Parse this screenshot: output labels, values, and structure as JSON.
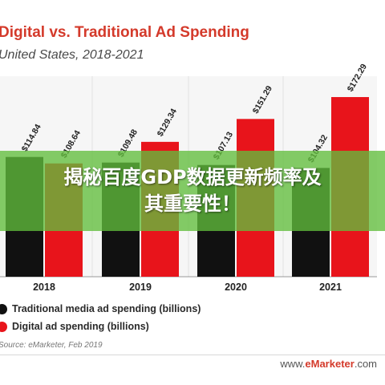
{
  "header": {
    "title": "Digital vs. Traditional Ad Spending",
    "subtitle": "United States, 2018-2021"
  },
  "chart_data": {
    "type": "bar",
    "categories": [
      "2018",
      "2019",
      "2020",
      "2021"
    ],
    "series": [
      {
        "name": "Traditional media ad spending (billions)",
        "values": [
          114.84,
          109.48,
          107.13,
          104.32
        ],
        "labels": [
          "$114.84",
          "$109.48",
          "$107.13",
          "$104.32"
        ],
        "color": "#111111"
      },
      {
        "name": "Digital ad spending (billions)",
        "values": [
          108.64,
          129.34,
          151.29,
          172.29
        ],
        "labels": [
          "$108.64",
          "$129.34",
          "$151.29",
          "$172.29"
        ],
        "color": "#e8141b"
      }
    ],
    "ylim": [
      0,
      180
    ],
    "grid": true,
    "legend_position": "bottom-left"
  },
  "footer": {
    "source": "Source: eMarketer, Feb 2019",
    "brand_prefix": "www.",
    "brand_accent": "eMarketer",
    "brand_suffix": ".com"
  },
  "overlay": {
    "line1": "揭秘百度GDP数据更新频率及",
    "line2": "其重要性！",
    "color": "#62be3c"
  }
}
